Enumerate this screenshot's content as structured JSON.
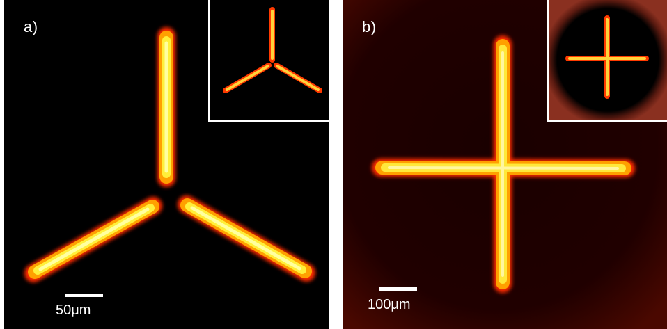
{
  "figure": {
    "panels": [
      {
        "label": "a)",
        "pattern": "three-arm",
        "scale_bar_label": "50μm",
        "inset_pattern": "three-arm"
      },
      {
        "label": "b)",
        "pattern": "cross",
        "scale_bar_label": "100μm",
        "inset_pattern": "cross"
      }
    ],
    "colors": {
      "beam_core": "#ffff80",
      "beam_mid": "#ffb300",
      "beam_edge": "#ff3000",
      "background_a": "#000000",
      "background_b": "#2b0000",
      "frame": "#ffffff"
    }
  }
}
